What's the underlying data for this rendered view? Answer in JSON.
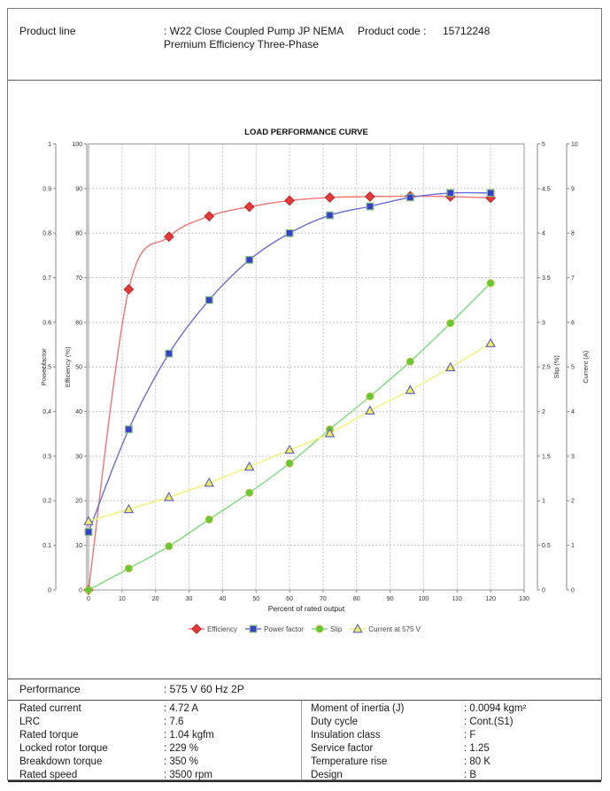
{
  "header": {
    "product_line_label": "Product line",
    "product_line_value": ": W22 Close Coupled Pump JP NEMA Premium Efficiency Three-Phase",
    "product_code_label": "Product code :",
    "product_code_value": "15712248"
  },
  "chart_data": {
    "type": "line",
    "title": "LOAD PERFORMANCE CURVE",
    "xlabel": "Percent of rated output",
    "x_range": [
      0,
      130
    ],
    "x_tick_step": 10,
    "grid": true,
    "legend_position": "bottom",
    "axes": [
      {
        "id": "power_factor",
        "label": "Power factor",
        "side": "left",
        "min": 0,
        "max": 1,
        "step": 0.1
      },
      {
        "id": "efficiency",
        "label": "Efficiency (%)",
        "side": "left",
        "min": 0,
        "max": 100,
        "step": 10
      },
      {
        "id": "slip",
        "label": "Slip (%)",
        "side": "right",
        "min": 0,
        "max": 5,
        "step": 0.5
      },
      {
        "id": "current",
        "label": "Current (A)",
        "side": "right",
        "min": 0,
        "max": 10,
        "step": 1
      }
    ],
    "x": [
      0,
      12,
      24,
      36,
      48,
      60,
      72,
      84,
      96,
      108,
      120
    ],
    "series": [
      {
        "name": "Efficiency",
        "axis": "efficiency",
        "marker": "diamond",
        "marker_color": "#e23b3b",
        "marker_edge": "#c42424",
        "line_color": "#f47272",
        "values": [
          0,
          67.4,
          79.2,
          83.8,
          85.9,
          87.3,
          88.0,
          88.2,
          88.3,
          88.2,
          87.9
        ]
      },
      {
        "name": "Power factor",
        "axis": "power_factor",
        "marker": "square",
        "marker_color": "#3c3ccd",
        "marker_edge": "#7cc47c",
        "line_color": "#6b6be0",
        "values": [
          0.13,
          0.36,
          0.53,
          0.65,
          0.74,
          0.8,
          0.84,
          0.86,
          0.88,
          0.89,
          0.89
        ]
      },
      {
        "name": "Slip",
        "axis": "slip",
        "marker": "circle",
        "marker_color": "#5ecc35",
        "marker_edge": "#c9b93a",
        "line_color": "#79dd79",
        "values": [
          0,
          0.24,
          0.49,
          0.79,
          1.09,
          1.42,
          1.8,
          2.17,
          2.56,
          2.99,
          3.44
        ]
      },
      {
        "name": "Current at 575 V",
        "axis": "current",
        "marker": "triangle",
        "marker_color": "#f2ee58",
        "marker_edge": "#5b5bd0",
        "line_color": "#f4f272",
        "values": [
          1.54,
          1.81,
          2.08,
          2.4,
          2.76,
          3.14,
          3.51,
          4.02,
          4.48,
          4.99,
          5.53
        ]
      }
    ]
  },
  "performance": {
    "section_label": "Performance",
    "section_value": ": 575 V 60 Hz 2P",
    "left": [
      {
        "label": "Rated current",
        "value": ": 4.72 A"
      },
      {
        "label": "LRC",
        "value": ": 7.6"
      },
      {
        "label": "Rated torque",
        "value": ": 1.04 kgfm"
      },
      {
        "label": "Locked rotor torque",
        "value": ": 229 %"
      },
      {
        "label": "Breakdown torque",
        "value": ": 350 %"
      },
      {
        "label": "Rated speed",
        "value": ": 3500 rpm"
      }
    ],
    "right": [
      {
        "label": "Moment of inertia (J)",
        "value": ": 0.0094 kgm²"
      },
      {
        "label": "Duty cycle",
        "value": ": Cont.(S1)"
      },
      {
        "label": "Insulation class",
        "value": ": F"
      },
      {
        "label": "Service factor",
        "value": ": 1.25"
      },
      {
        "label": "Temperature rise",
        "value": ": 80 K"
      },
      {
        "label": "Design",
        "value": ": B"
      }
    ]
  }
}
